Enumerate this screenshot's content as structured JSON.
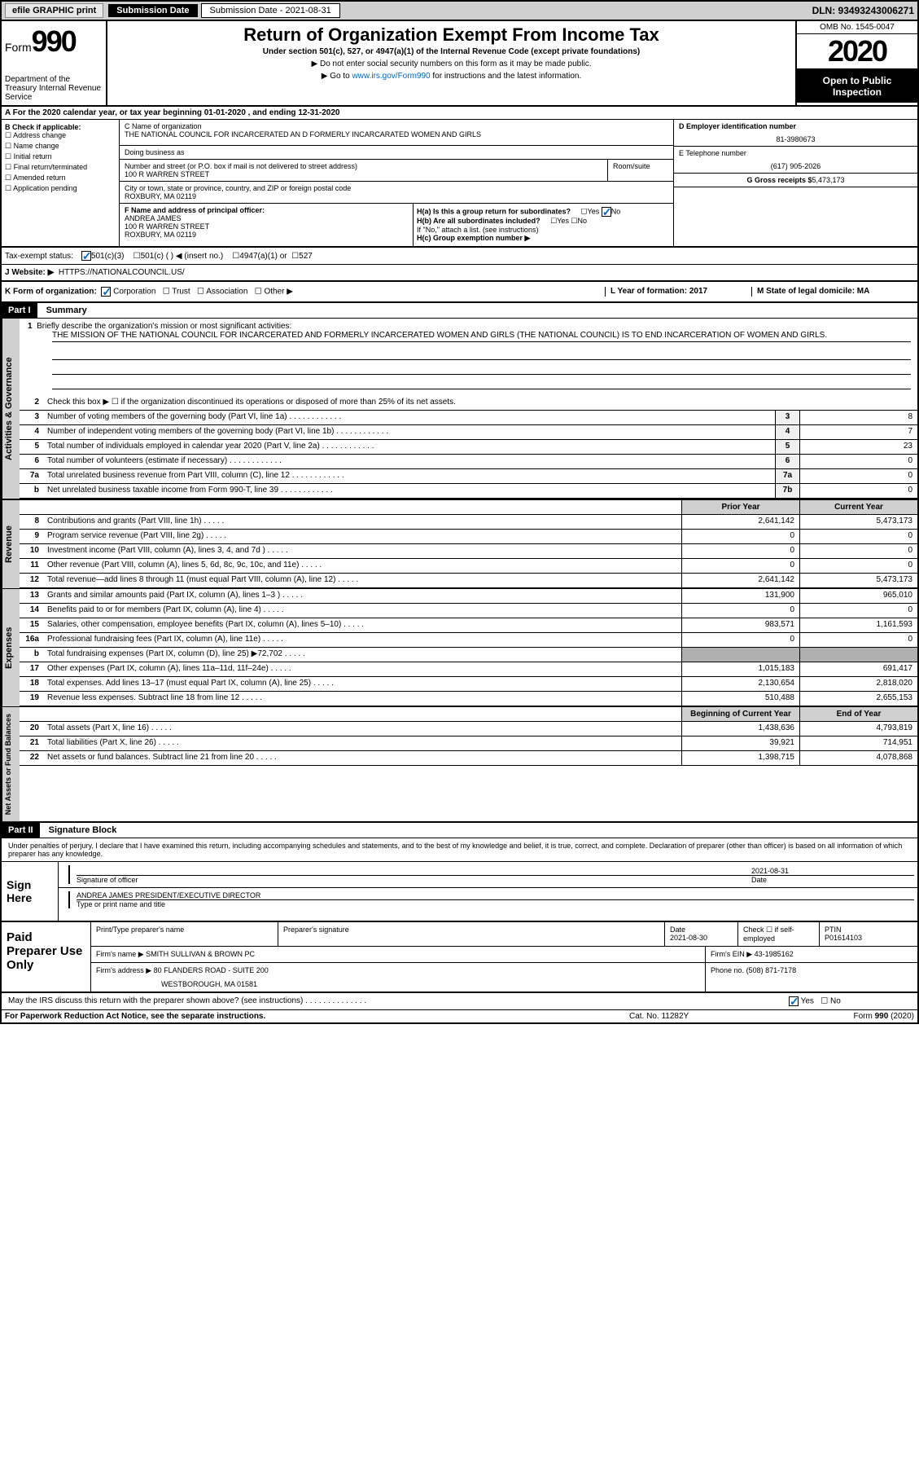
{
  "top": {
    "efile": "efile GRAPHIC print",
    "submission_label": "Submission Date - 2021-08-31",
    "dln": "DLN: 93493243006271"
  },
  "header": {
    "form_label": "Form",
    "form_num": "990",
    "dept": "Department of the Treasury Internal Revenue Service",
    "title": "Return of Organization Exempt From Income Tax",
    "subtitle": "Under section 501(c), 527, or 4947(a)(1) of the Internal Revenue Code (except private foundations)",
    "note1": "▶ Do not enter social security numbers on this form as it may be made public.",
    "note2_pre": "▶ Go to ",
    "note2_link": "www.irs.gov/Form990",
    "note2_post": " for instructions and the latest information.",
    "omb": "OMB No. 1545-0047",
    "year": "2020",
    "open": "Open to Public Inspection"
  },
  "section_a": "A For the 2020 calendar year, or tax year beginning 01-01-2020    , and ending 12-31-2020",
  "col_b": {
    "title": "B Check if applicable:",
    "items": [
      "Address change",
      "Name change",
      "Initial return",
      "Final return/terminated",
      "Amended return",
      "Application pending"
    ]
  },
  "org": {
    "name_label": "C Name of organization",
    "name": "THE NATIONAL COUNCIL FOR INCARCERATED AN D FORMERLY INCARCARATED WOMEN AND GIRLS",
    "dba_label": "Doing business as",
    "addr_label": "Number and street (or P.O. box if mail is not delivered to street address)",
    "room_label": "Room/suite",
    "addr": "100 R WARREN STREET",
    "city_label": "City or town, state or province, country, and ZIP or foreign postal code",
    "city": "ROXBURY, MA  02119",
    "f_label": "F  Name and address of principal officer:",
    "f_name": "ANDREA JAMES",
    "f_addr1": "100 R WARREN STREET",
    "f_addr2": "ROXBURY, MA  02119"
  },
  "right": {
    "d_label": "D Employer identification number",
    "ein": "81-3980673",
    "e_label": "E Telephone number",
    "phone": "(617) 905-2026",
    "g_label": "G Gross receipts $",
    "g_val": "5,473,173",
    "ha": "H(a)  Is this a group return for subordinates?",
    "hb": "H(b)  Are all subordinates included?",
    "hb_note": "If \"No,\" attach a list. (see instructions)",
    "hc": "H(c)  Group exemption number ▶"
  },
  "tax_status": {
    "label": "Tax-exempt status:",
    "opt1": "501(c)(3)",
    "opt2": "501(c) (  ) ◀ (insert no.)",
    "opt3": "4947(a)(1) or",
    "opt4": "527"
  },
  "website": {
    "label": "J   Website: ▶",
    "val": "HTTPS://NATIONALCOUNCIL.US/"
  },
  "k": {
    "label": "K Form of organization:",
    "opts": [
      "Corporation",
      "Trust",
      "Association",
      "Other ▶"
    ],
    "l": "L Year of formation: 2017",
    "m": "M State of legal domicile: MA"
  },
  "part1": {
    "label": "Part I",
    "title": "Summary"
  },
  "mission": {
    "num": "1",
    "label": "Briefly describe the organization's mission or most significant activities:",
    "text": "THE MISSION OF THE NATIONAL COUNCIL FOR INCARCERATED AND FORMERLY INCARCERATED WOMEN AND GIRLS (THE NATIONAL COUNCIL) IS TO END INCARCERATION OF WOMEN AND GIRLS."
  },
  "lines_activities": [
    {
      "num": "2",
      "text": "Check this box ▶ ☐  if the organization discontinued its operations or disposed of more than 25% of its net assets.",
      "box": "",
      "val": ""
    },
    {
      "num": "3",
      "text": "Number of voting members of the governing body (Part VI, line 1a)",
      "box": "3",
      "val": "8"
    },
    {
      "num": "4",
      "text": "Number of independent voting members of the governing body (Part VI, line 1b)",
      "box": "4",
      "val": "7"
    },
    {
      "num": "5",
      "text": "Total number of individuals employed in calendar year 2020 (Part V, line 2a)",
      "box": "5",
      "val": "23"
    },
    {
      "num": "6",
      "text": "Total number of volunteers (estimate if necessary)",
      "box": "6",
      "val": "0"
    },
    {
      "num": "7a",
      "text": "Total unrelated business revenue from Part VIII, column (C), line 12",
      "box": "7a",
      "val": "0"
    },
    {
      "num": "b",
      "text": "Net unrelated business taxable income from Form 990-T, line 39",
      "box": "7b",
      "val": "0"
    }
  ],
  "col_headers": {
    "prior": "Prior Year",
    "current": "Current Year"
  },
  "lines_revenue": [
    {
      "num": "8",
      "text": "Contributions and grants (Part VIII, line 1h)",
      "prior": "2,641,142",
      "current": "5,473,173"
    },
    {
      "num": "9",
      "text": "Program service revenue (Part VIII, line 2g)",
      "prior": "0",
      "current": "0"
    },
    {
      "num": "10",
      "text": "Investment income (Part VIII, column (A), lines 3, 4, and 7d )",
      "prior": "0",
      "current": "0"
    },
    {
      "num": "11",
      "text": "Other revenue (Part VIII, column (A), lines 5, 6d, 8c, 9c, 10c, and 11e)",
      "prior": "0",
      "current": "0"
    },
    {
      "num": "12",
      "text": "Total revenue—add lines 8 through 11 (must equal Part VIII, column (A), line 12)",
      "prior": "2,641,142",
      "current": "5,473,173"
    }
  ],
  "lines_expenses": [
    {
      "num": "13",
      "text": "Grants and similar amounts paid (Part IX, column (A), lines 1–3 )",
      "prior": "131,900",
      "current": "965,010"
    },
    {
      "num": "14",
      "text": "Benefits paid to or for members (Part IX, column (A), line 4)",
      "prior": "0",
      "current": "0"
    },
    {
      "num": "15",
      "text": "Salaries, other compensation, employee benefits (Part IX, column (A), lines 5–10)",
      "prior": "983,571",
      "current": "1,161,593"
    },
    {
      "num": "16a",
      "text": "Professional fundraising fees (Part IX, column (A), line 11e)",
      "prior": "0",
      "current": "0"
    },
    {
      "num": "b",
      "text": "Total fundraising expenses (Part IX, column (D), line 25) ▶72,702",
      "prior": "shaded",
      "current": "shaded"
    },
    {
      "num": "17",
      "text": "Other expenses (Part IX, column (A), lines 11a–11d, 11f–24e)",
      "prior": "1,015,183",
      "current": "691,417"
    },
    {
      "num": "18",
      "text": "Total expenses. Add lines 13–17 (must equal Part IX, column (A), line 25)",
      "prior": "2,130,654",
      "current": "2,818,020"
    },
    {
      "num": "19",
      "text": "Revenue less expenses. Subtract line 18 from line 12",
      "prior": "510,488",
      "current": "2,655,153"
    }
  ],
  "col_headers2": {
    "begin": "Beginning of Current Year",
    "end": "End of Year"
  },
  "lines_net": [
    {
      "num": "20",
      "text": "Total assets (Part X, line 16)",
      "prior": "1,438,636",
      "current": "4,793,819"
    },
    {
      "num": "21",
      "text": "Total liabilities (Part X, line 26)",
      "prior": "39,921",
      "current": "714,951"
    },
    {
      "num": "22",
      "text": "Net assets or fund balances. Subtract line 21 from line 20",
      "prior": "1,398,715",
      "current": "4,078,868"
    }
  ],
  "side_labels": {
    "activities": "Activities & Governance",
    "revenue": "Revenue",
    "expenses": "Expenses",
    "net": "Net Assets or Fund Balances"
  },
  "part2": {
    "label": "Part II",
    "title": "Signature Block"
  },
  "declaration": "Under penalties of perjury, I declare that I have examined this return, including accompanying schedules and statements, and to the best of my knowledge and belief, it is true, correct, and complete. Declaration of preparer (other than officer) is based on all information of which preparer has any knowledge.",
  "sign": {
    "here": "Sign Here",
    "sig_label": "Signature of officer",
    "date": "2021-08-31",
    "date_label": "Date",
    "name": "ANDREA JAMES  PRESIDENT/EXECUTIVE DIRECTOR",
    "name_label": "Type or print name and title"
  },
  "prep": {
    "title": "Paid Preparer Use Only",
    "h1": "Print/Type preparer's name",
    "h2": "Preparer's signature",
    "h3": "Date",
    "date": "2021-08-30",
    "h4": "Check ☐ if self-employed",
    "h5": "PTIN",
    "ptin": "P01614103",
    "firm_label": "Firm's name    ▶",
    "firm": "SMITH SULLIVAN & BROWN PC",
    "ein_label": "Firm's EIN ▶",
    "ein": "43-1985162",
    "addr_label": "Firm's address ▶",
    "addr1": "80 FLANDERS ROAD - SUITE 200",
    "addr2": "WESTBOROUGH, MA  01581",
    "phone_label": "Phone no.",
    "phone": "(508) 871-7178"
  },
  "irs_discuss": "May the IRS discuss this return with the preparer shown above? (see instructions)",
  "footer": {
    "left": "For Paperwork Reduction Act Notice, see the separate instructions.",
    "mid": "Cat. No. 11282Y",
    "right": "Form 990 (2020)"
  }
}
